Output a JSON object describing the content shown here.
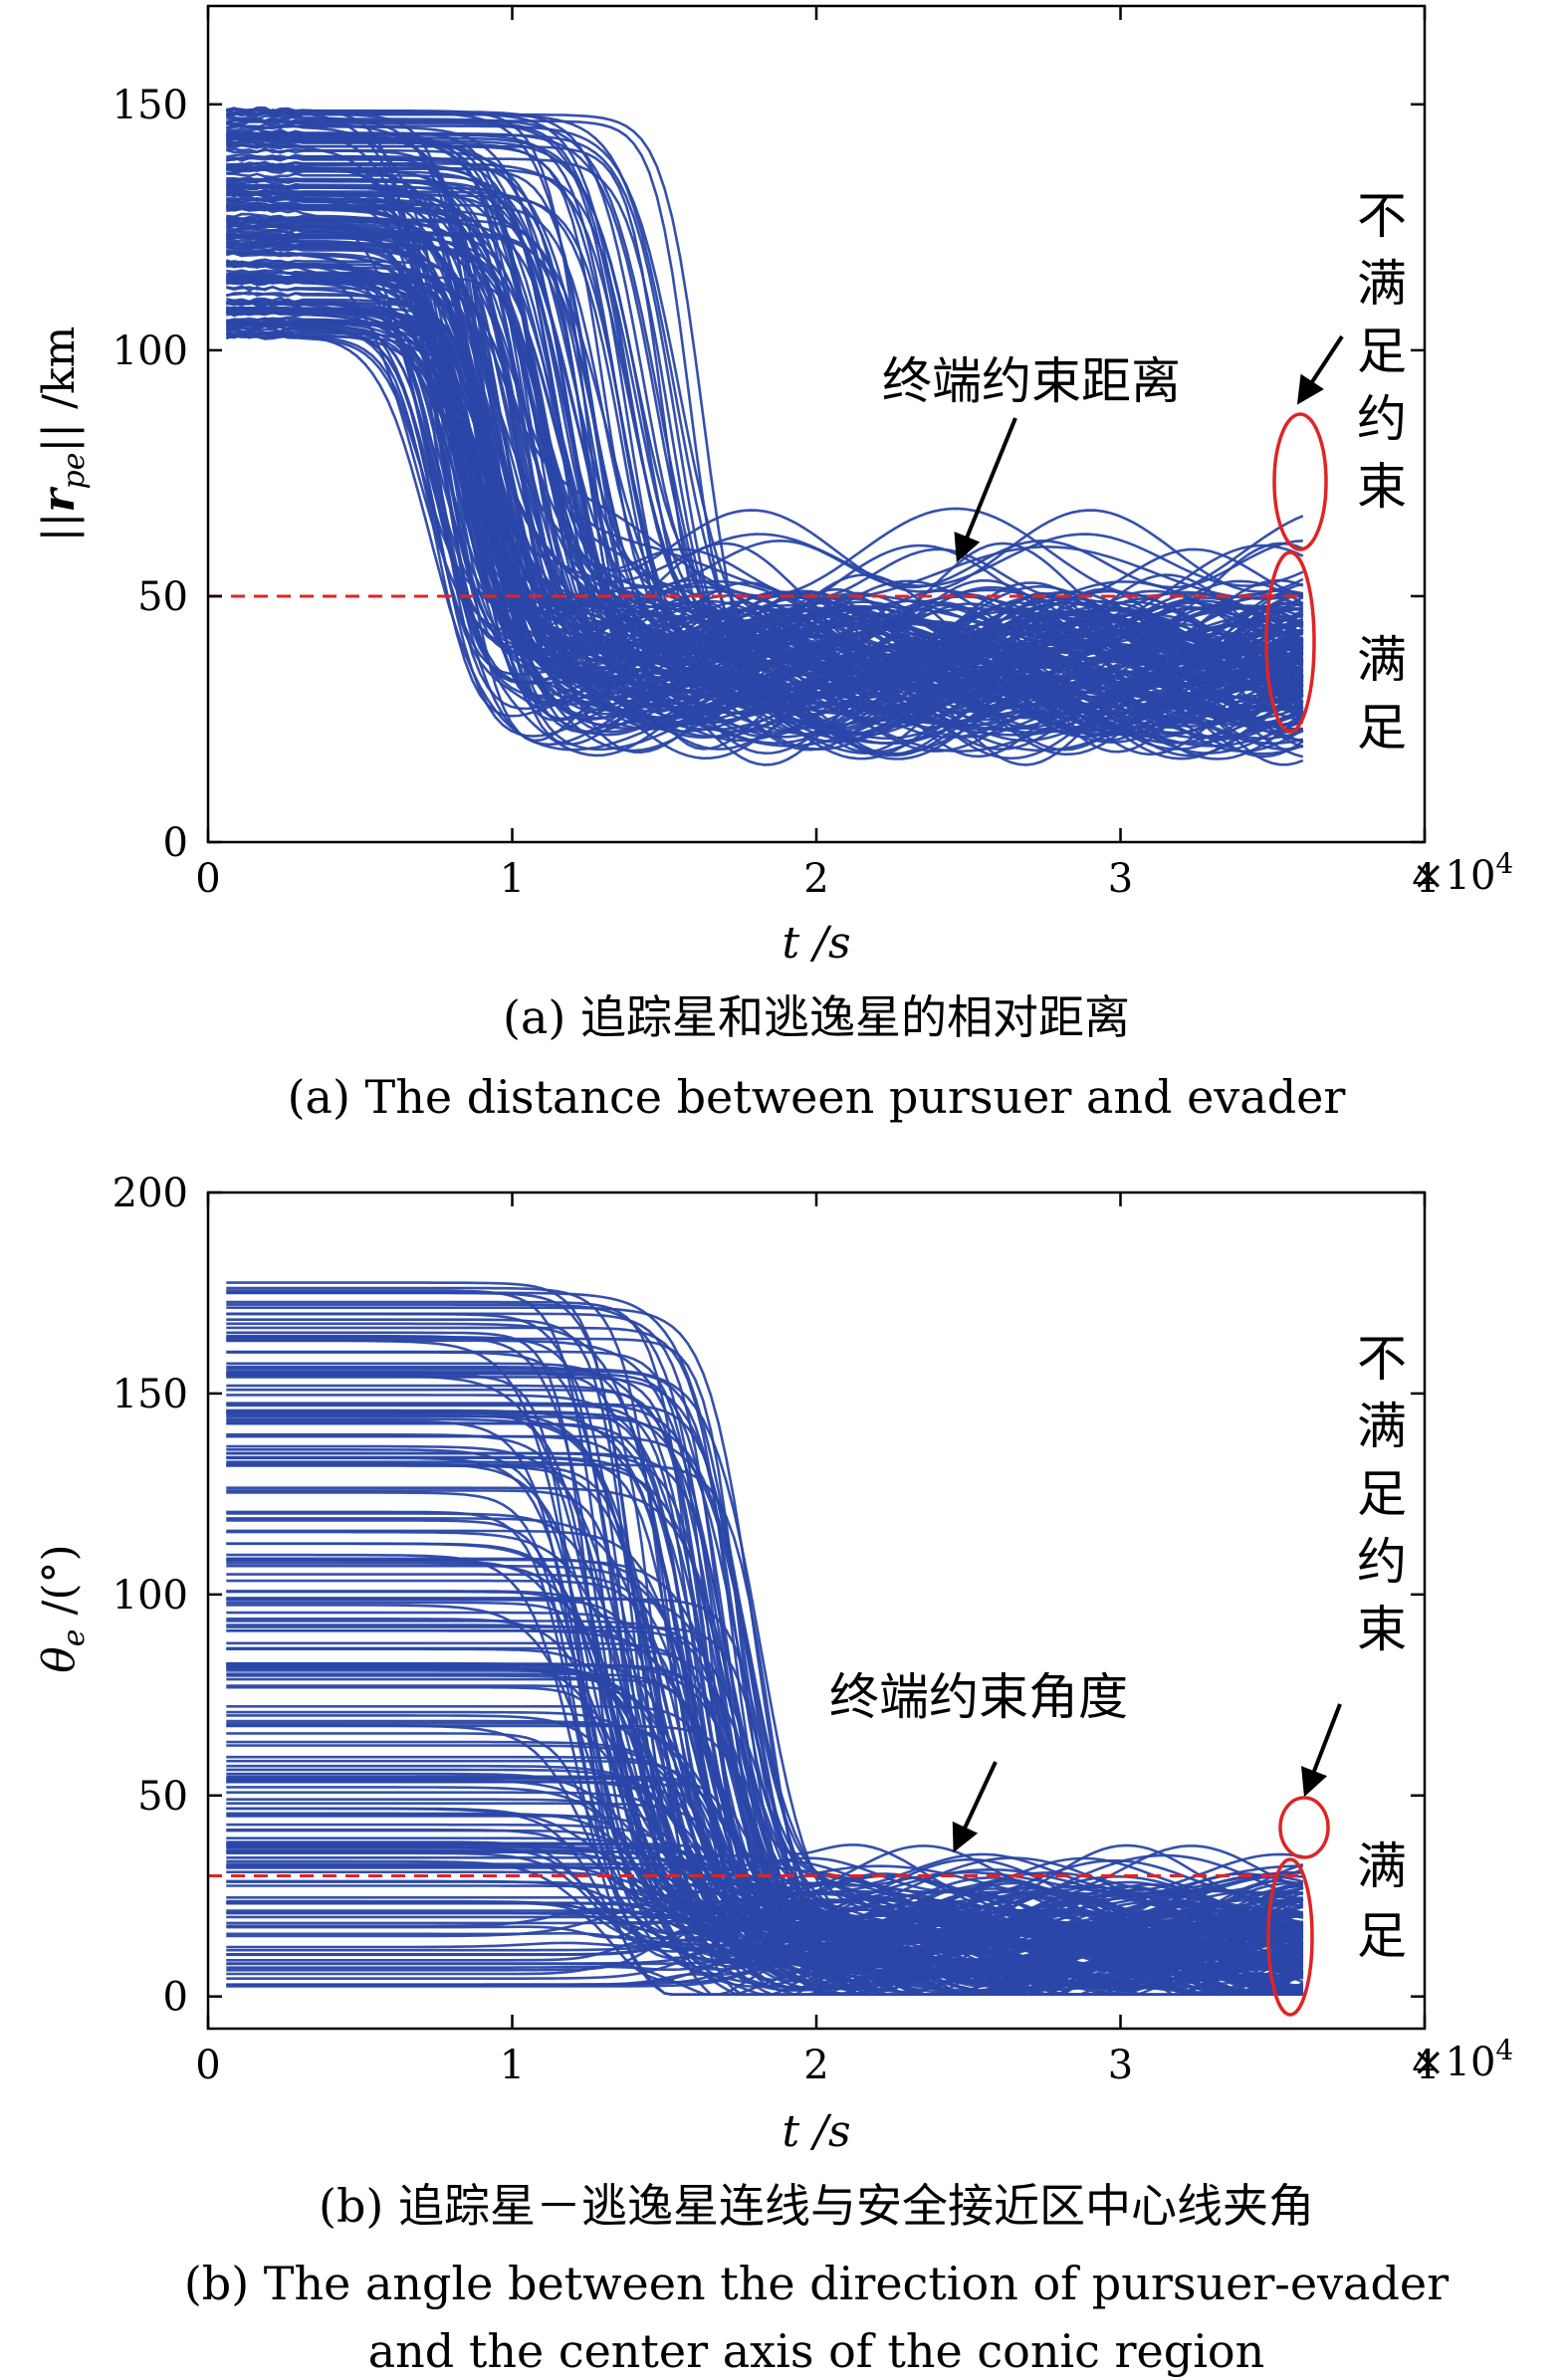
{
  "colors": {
    "trajectory": "#2a47a8",
    "threshold": "#e02424",
    "annotation_ellipse": "#e02424",
    "axes": "#000000"
  },
  "chart_data": [
    {
      "type": "line",
      "panel": "a",
      "xlabel": "t /s",
      "ylabel": "||r_pe|| /km",
      "ylabel_parts": {
        "open": "||",
        "var": "r",
        "sub": "pe",
        "close": "|| /km"
      },
      "xlim": [
        0,
        40000
      ],
      "ylim": [
        0,
        170
      ],
      "x_ticks": [
        0,
        1,
        2,
        3,
        4
      ],
      "x_multiplier": "×10",
      "x_multiplier_exp": "4",
      "y_ticks": [
        0,
        50,
        100,
        150
      ],
      "threshold": 50,
      "annotations": {
        "arrow_label": "终端约束距离",
        "not_satisfied": [
          "不",
          "满",
          "足",
          "约",
          "束"
        ],
        "satisfied": [
          "满",
          "足"
        ]
      },
      "series": [
        {
          "t_end": 36000,
          "start_range": [
            102,
            150
          ],
          "mid": [
            [
              10000,
              30
            ],
            [
              15000,
              40
            ]
          ],
          "end_range": [
            22,
            62
          ]
        }
      ],
      "caption_cn": "(a) 追踪星和逃逸星的相对距离",
      "caption_en": "(a) The distance between pursuer and evader"
    },
    {
      "type": "line",
      "panel": "b",
      "xlabel": "t /s",
      "ylabel": "θ_e /(°)",
      "ylabel_parts": {
        "var": "θ",
        "sub": "e",
        "rest": " /(°)"
      },
      "xlim": [
        0,
        40000
      ],
      "ylim": [
        -8,
        200
      ],
      "x_ticks": [
        0,
        1,
        2,
        3,
        4
      ],
      "x_multiplier": "×10",
      "x_multiplier_exp": "4",
      "y_ticks": [
        0,
        50,
        100,
        150,
        200
      ],
      "threshold": 30,
      "annotations": {
        "arrow_label": "终端约束角度",
        "not_satisfied": [
          "不",
          "满",
          "足",
          "约",
          "束"
        ],
        "satisfied": [
          "满",
          "足"
        ]
      },
      "series": [
        {
          "t_end": 36000,
          "start_range": [
            2,
            180
          ],
          "mid": [
            [
              17000,
              20
            ],
            [
              20000,
              15
            ]
          ],
          "end_range": [
            0,
            33
          ]
        }
      ],
      "caption_cn": "(b) 追踪星－逃逸星连线与安全接近区中心线夹角",
      "caption_en_line1": "(b) The angle between the direction of pursuer-evader",
      "caption_en_line2": "and the center axis of the conic region"
    }
  ]
}
